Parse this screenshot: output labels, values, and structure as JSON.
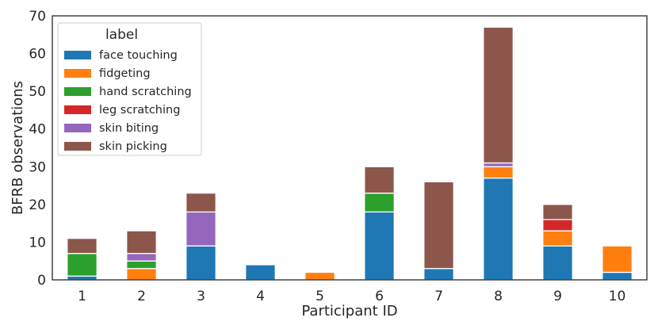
{
  "chart_data": {
    "type": "bar",
    "stacked": true,
    "categories": [
      "1",
      "2",
      "3",
      "4",
      "5",
      "6",
      "7",
      "8",
      "9",
      "10"
    ],
    "xlabel": "Participant ID",
    "ylabel": "BFRB observations",
    "ylim": [
      0,
      70
    ],
    "yticks": [
      0,
      10,
      20,
      30,
      40,
      50,
      60,
      70
    ],
    "grid": false,
    "legend": {
      "title": "label",
      "position": "top-left"
    },
    "series": [
      {
        "name": "face touching",
        "color": "#1f77b4",
        "values": [
          1,
          0,
          9,
          4,
          0,
          18,
          3,
          27,
          9,
          2
        ]
      },
      {
        "name": "fidgeting",
        "color": "#ff7f0e",
        "values": [
          0,
          3,
          0,
          0,
          2,
          0,
          0,
          3,
          4,
          7
        ]
      },
      {
        "name": "hand scratching",
        "color": "#2ca02c",
        "values": [
          6,
          2,
          0,
          0,
          0,
          5,
          0,
          0,
          0,
          0
        ]
      },
      {
        "name": "leg scratching",
        "color": "#d62728",
        "values": [
          0,
          0,
          0,
          0,
          0,
          0,
          0,
          0,
          3,
          0
        ]
      },
      {
        "name": "skin biting",
        "color": "#9467bd",
        "values": [
          0,
          2,
          9,
          0,
          0,
          0,
          0,
          1,
          0,
          0
        ]
      },
      {
        "name": "skin picking",
        "color": "#8c564b",
        "values": [
          4,
          6,
          5,
          0,
          0,
          7,
          23,
          36,
          4,
          0
        ]
      }
    ]
  }
}
